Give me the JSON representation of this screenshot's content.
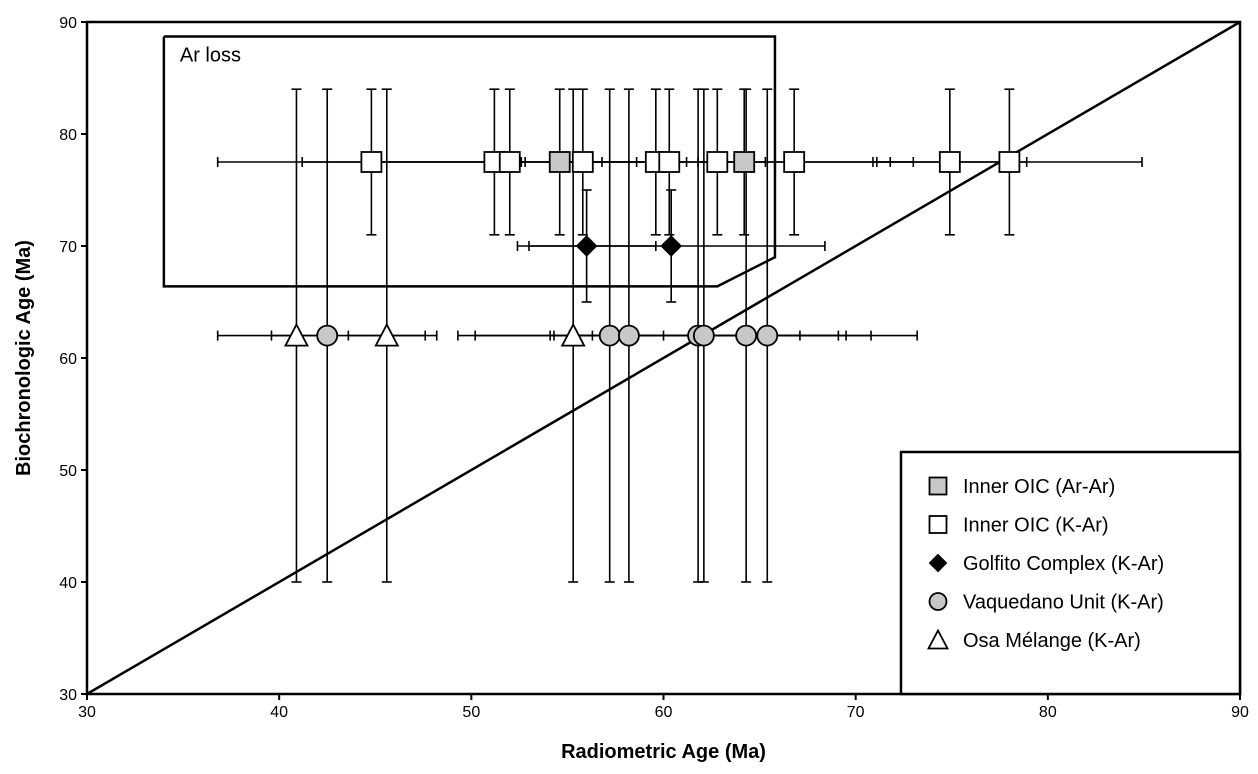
{
  "chart_data": {
    "type": "scatter",
    "title": "",
    "xlabel": "Radiometric Age (Ma)",
    "ylabel": "Biochronologic Age (Ma)",
    "xlim": [
      30,
      90
    ],
    "ylim": [
      30,
      90
    ],
    "xticks": [
      30,
      40,
      50,
      60,
      70,
      80,
      90
    ],
    "yticks": [
      30,
      40,
      50,
      60,
      70,
      80,
      90
    ],
    "grid": false,
    "legend_position": "bottom-right",
    "reference_line": {
      "name": "1:1",
      "x": [
        30,
        90
      ],
      "y": [
        30,
        90
      ]
    },
    "annotations": [
      {
        "text": "Ar loss",
        "region": [
          [
            34,
            88.7
          ],
          [
            65.8,
            88.7
          ],
          [
            65.8,
            69
          ],
          [
            62.8,
            66.4
          ],
          [
            34,
            66.4
          ]
        ]
      }
    ],
    "series": [
      {
        "name": "Inner OIC (Ar-Ar)",
        "marker": "square",
        "fill": "#c8c8c8",
        "points": [
          {
            "x": 54.6,
            "y": 77.5,
            "xerr": [
              54.4,
              54.8
            ],
            "yerr": [
              71,
              84
            ]
          },
          {
            "x": 64.2,
            "y": 77.5,
            "xerr": [
              63.8,
              64.6
            ],
            "yerr": [
              71,
              84
            ]
          }
        ]
      },
      {
        "name": "Inner OIC (K-Ar)",
        "marker": "square",
        "fill": "#ffffff",
        "points": [
          {
            "x": 44.8,
            "y": 77.5,
            "xerr": [
              36.8,
              52.8
            ],
            "yerr": [
              71,
              84
            ]
          },
          {
            "x": 51.2,
            "y": 77.5,
            "xerr": [
              41.2,
              61.2
            ],
            "yerr": [
              71,
              84
            ]
          },
          {
            "x": 52.0,
            "y": 77.5,
            "xerr": [
              44.8,
              59.2
            ],
            "yerr": [
              71,
              84
            ]
          },
          {
            "x": 55.8,
            "y": 77.5,
            "xerr": [
              54.8,
              56.8
            ],
            "yerr": [
              71,
              84
            ]
          },
          {
            "x": 59.6,
            "y": 77.5,
            "xerr": [
              58.6,
              60.6
            ],
            "yerr": [
              71,
              84
            ]
          },
          {
            "x": 60.3,
            "y": 77.5,
            "xerr": [
              55.3,
              65.3
            ],
            "yerr": [
              71,
              84
            ]
          },
          {
            "x": 62.8,
            "y": 77.5,
            "xerr": [
              52.6,
              73.0
            ],
            "yerr": [
              71,
              84
            ]
          },
          {
            "x": 66.8,
            "y": 77.5,
            "xerr": [
              61.8,
              71.8
            ],
            "yerr": [
              71,
              84
            ]
          },
          {
            "x": 74.9,
            "y": 77.5,
            "xerr": [
              70.9,
              78.9
            ],
            "yerr": [
              71,
              84
            ]
          },
          {
            "x": 78.0,
            "y": 77.5,
            "xerr": [
              71.1,
              84.9
            ],
            "yerr": [
              71,
              84
            ]
          }
        ]
      },
      {
        "name": "Golfito Complex (K-Ar)",
        "marker": "diamond",
        "fill": "#000000",
        "points": [
          {
            "x": 56.0,
            "y": 70,
            "xerr": [
              52.4,
              59.6
            ],
            "yerr": [
              65,
              75
            ]
          },
          {
            "x": 60.4,
            "y": 70,
            "xerr": [
              53.0,
              68.4
            ],
            "yerr": [
              65,
              75
            ]
          }
        ]
      },
      {
        "name": "Vaquedano Unit (K-Ar)",
        "marker": "circle",
        "fill": "#c8c8c8",
        "points": [
          {
            "x": 42.5,
            "y": 62,
            "xerr": [
              36.8,
              48.2
            ],
            "yerr": [
              40,
              84
            ]
          },
          {
            "x": 57.2,
            "y": 62,
            "xerr": [
              50.2,
              64.2
            ],
            "yerr": [
              40,
              84
            ]
          },
          {
            "x": 58.2,
            "y": 62,
            "xerr": [
              49.3,
              67.1
            ],
            "yerr": [
              40,
              84
            ]
          },
          {
            "x": 61.8,
            "y": 62,
            "xerr": [
              54.1,
              69.5
            ],
            "yerr": [
              40,
              84
            ]
          },
          {
            "x": 62.1,
            "y": 62,
            "xerr": [
              55.1,
              69.1
            ],
            "yerr": [
              40,
              84
            ]
          },
          {
            "x": 64.3,
            "y": 62,
            "xerr": [
              55.4,
              73.2
            ],
            "yerr": [
              40,
              84
            ]
          },
          {
            "x": 65.4,
            "y": 62,
            "xerr": [
              60.0,
              70.8
            ],
            "yerr": [
              40,
              84
            ]
          }
        ]
      },
      {
        "name": "Osa Mélange (K-Ar)",
        "marker": "triangle",
        "fill": "#ffffff",
        "points": [
          {
            "x": 40.9,
            "y": 62,
            "xerr": [
              39.6,
              42.2
            ],
            "yerr": [
              40,
              84
            ]
          },
          {
            "x": 45.6,
            "y": 62,
            "xerr": [
              43.6,
              47.6
            ],
            "yerr": [
              40,
              84
            ]
          },
          {
            "x": 55.3,
            "y": 62,
            "xerr": [
              54.3,
              56.3
            ],
            "yerr": [
              40,
              84
            ]
          }
        ]
      }
    ]
  }
}
